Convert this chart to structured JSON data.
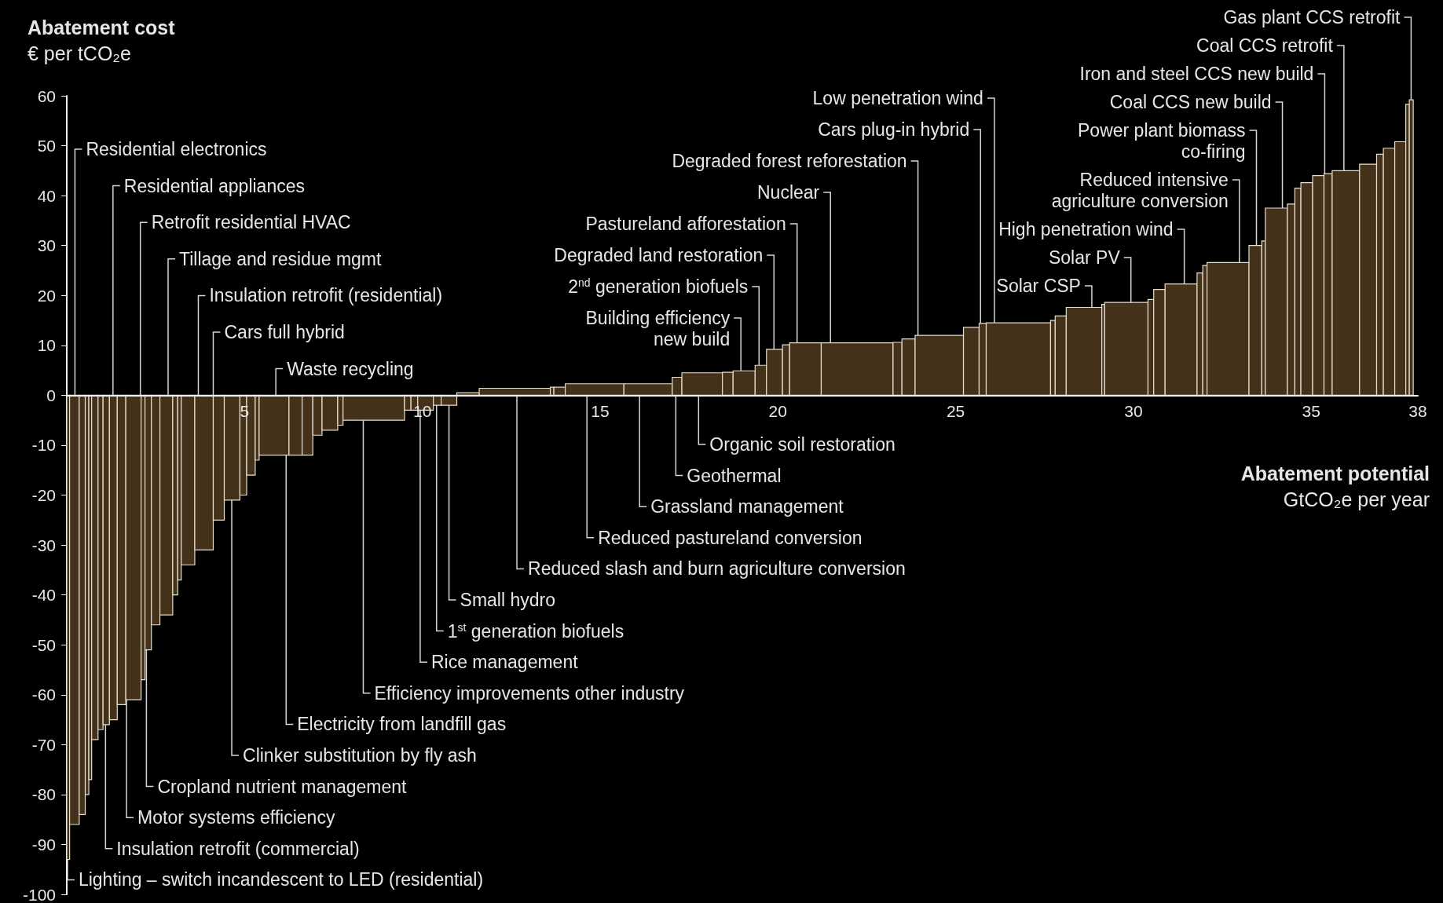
{
  "chart_data": {
    "type": "histogram",
    "xlabel": "Abatement potential\nGtCO₂e per year",
    "ylabel": "Abatement cost\n€ per tCO₂e",
    "color": "#433219",
    "bins": [
      0,
      0.08,
      0.35,
      0.52,
      0.62,
      0.7,
      0.88,
      1.02,
      1.2,
      1.42,
      1.66,
      2.09,
      2.2,
      2.38,
      2.62,
      2.98,
      3.12,
      3.22,
      3.6,
      4.12,
      4.43,
      4.87,
      5.06,
      5.3,
      5.41,
      6.25,
      6.62,
      6.92,
      7.18,
      7.62,
      7.77,
      9.5,
      9.68,
      9.87,
      10.31,
      10.53,
      10.97,
      11.6,
      13.6,
      13.7,
      14.02,
      15.67,
      17.03,
      17.3,
      18.44,
      18.74,
      19.36,
      19.68,
      20.13,
      20.33,
      21.22,
      23.24,
      23.49,
      23.86,
      25.22,
      25.66,
      25.86,
      27.67,
      27.8,
      28.11,
      29.11,
      29.19,
      30.41,
      30.57,
      30.89,
      31.79,
      31.95,
      32.07,
      33.25,
      33.61,
      33.71,
      34.33,
      34.54,
      34.71,
      35.04,
      35.36,
      35.59,
      36.36,
      36.84,
      37.03,
      37.35,
      37.66,
      37.76,
      37.87
    ],
    "values": [
      -93,
      -86,
      -84,
      -80,
      -77,
      -69,
      -67,
      -66,
      -65,
      -62,
      -61,
      -57,
      -51,
      -46,
      -44,
      -40,
      -37,
      -34,
      -31,
      -25,
      -21,
      -20,
      -16,
      -13,
      -12,
      -12,
      -12,
      -8,
      -7,
      -6,
      -5,
      -3,
      -3,
      -3,
      -2,
      -2,
      0.5,
      1.4,
      1.6,
      1.6,
      2.3,
      2.3,
      3.6,
      4.5,
      4.6,
      4.9,
      6,
      9.2,
      10.1,
      10.5,
      10.5,
      10.6,
      11.3,
      12,
      13.6,
      14.4,
      14.5,
      15,
      15.9,
      17.6,
      18.2,
      18.6,
      19.2,
      21.2,
      22.3,
      24.5,
      26,
      26.6,
      30,
      30.9,
      37.5,
      38.3,
      41.5,
      42.6,
      44,
      44.4,
      45,
      46.3,
      48.3,
      49.5,
      50.8,
      58.3,
      59.2
    ],
    "xlim": [
      0,
      38
    ],
    "xticks": [
      5,
      10,
      15,
      20,
      25,
      30,
      35,
      38
    ],
    "ylim": [
      -100,
      60
    ],
    "yticks": [
      -100,
      -90,
      -80,
      -70,
      -60,
      -50,
      -40,
      -30,
      -20,
      -10,
      0,
      10,
      20,
      30,
      40,
      50,
      60
    ],
    "annotations": [
      {
        "text": "Residential electronics",
        "x": 0.23,
        "y": 0
      },
      {
        "text": "Residential appliances",
        "x": 1.3,
        "y": 0
      },
      {
        "text": "Retrofit residential HVAC",
        "x": 2.07,
        "y": 0
      },
      {
        "text": "Tillage and residue mgmt",
        "x": 2.85,
        "y": 0
      },
      {
        "text": "Insulation retrofit (residential)",
        "x": 3.7,
        "y": 0
      },
      {
        "text": "Cars full hybrid",
        "x": 4.12,
        "y": 0
      },
      {
        "text": "Waste recycling",
        "x": 5.88,
        "y": 0
      },
      {
        "text": "Organic soil restoration",
        "x": 17.77,
        "y": 0
      },
      {
        "text": "Geothermal",
        "x": 17.13,
        "y": 0
      },
      {
        "text": "Grassland management",
        "x": 16.11,
        "y": 0
      },
      {
        "text": "Reduced pastureland conversion",
        "x": 14.63,
        "y": 0
      },
      {
        "text": "Reduced slash and burn agriculture conversion",
        "x": 12.66,
        "y": 0
      },
      {
        "text": "Small hydro",
        "x": 10.75,
        "y": -2
      },
      {
        "text": "1$^{st}$ generation biofuels",
        "x": 10.4,
        "y": -2
      },
      {
        "text": "Rice management",
        "x": 9.94,
        "y": -3
      },
      {
        "text": "Efficiency improvements other industry",
        "x": 8.34,
        "y": -5
      },
      {
        "text": "Electricity from landfill gas",
        "x": 6.17,
        "y": -12
      },
      {
        "text": "Clinker substitution by fly ash",
        "x": 4.64,
        "y": -21
      },
      {
        "text": "Cropland nutrient management",
        "x": 2.24,
        "y": -51
      },
      {
        "text": "Motor systems efficiency",
        "x": 1.68,
        "y": -61
      },
      {
        "text": "Insulation retrofit (commercial)",
        "x": 1.09,
        "y": -66
      },
      {
        "text": "Lighting – switch incandescent to LED (residential)",
        "x": 0.02,
        "y": -93
      },
      {
        "text": "Building efficiency\nnew build",
        "x": 18.96,
        "y": 4.9
      },
      {
        "text": "2$^{nd}$ generation biofuels",
        "x": 19.47,
        "y": 6
      },
      {
        "text": "Degraded land restoration",
        "x": 19.89,
        "y": 9.2
      },
      {
        "text": "Pastureland afforestation",
        "x": 20.54,
        "y": 10.5
      },
      {
        "text": "Nuclear",
        "x": 21.48,
        "y": 10.5
      },
      {
        "text": "Degraded forest reforestation",
        "x": 23.94,
        "y": 12
      },
      {
        "text": "Cars plug-in hybrid",
        "x": 25.7,
        "y": 14.4
      },
      {
        "text": "Low penetration wind",
        "x": 26.09,
        "y": 14.5
      },
      {
        "text": "Solar CSP",
        "x": 28.83,
        "y": 17.6
      },
      {
        "text": "Solar PV",
        "x": 29.93,
        "y": 18.6
      },
      {
        "text": "High penetration wind",
        "x": 31.43,
        "y": 22.3
      },
      {
        "text": "Reduced intensive\nagriculture conversion",
        "x": 32.98,
        "y": 26.6
      },
      {
        "text": "Power plant biomass\nco-firing",
        "x": 33.46,
        "y": 30
      },
      {
        "text": "Coal CCS new build",
        "x": 34.19,
        "y": 37.5
      },
      {
        "text": "Iron and steel CCS new build",
        "x": 35.38,
        "y": 44
      },
      {
        "text": "Coal CCS retrofit",
        "x": 35.92,
        "y": 45
      },
      {
        "text": "Gas plant CCS retrofit",
        "x": 37.81,
        "y": 59.2
      }
    ]
  }
}
